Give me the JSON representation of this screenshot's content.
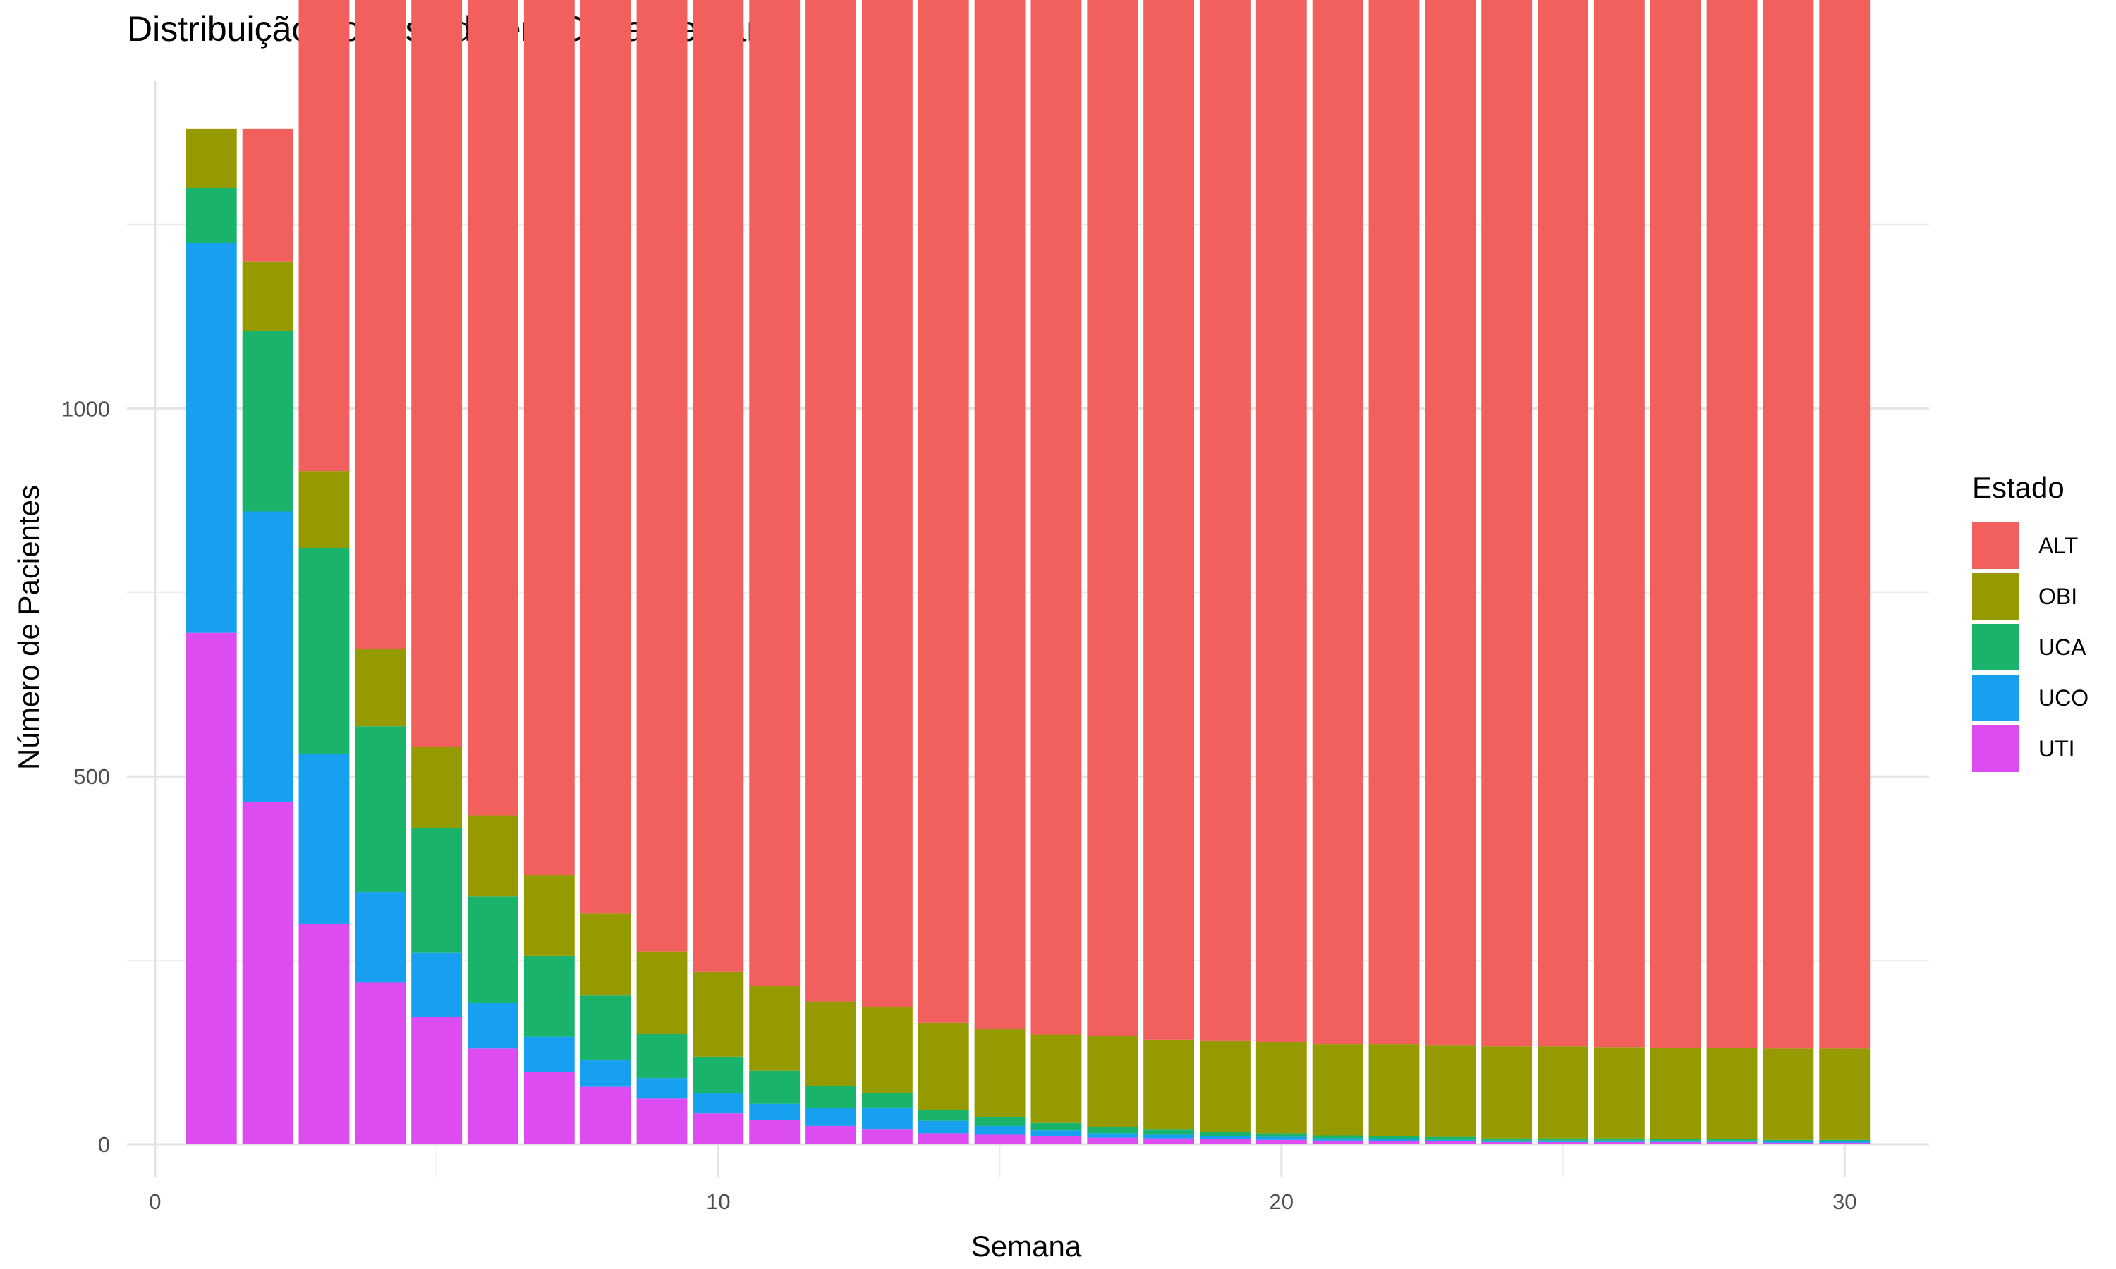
{
  "chart_data": {
    "type": "bar",
    "stacked": true,
    "title": "Distribuição por Estado em Cada Semana",
    "xlabel": "Semana",
    "ylabel": "Número de Pacientes",
    "xlim": [
      -0.5,
      31.5
    ],
    "ylim": [
      -45,
      1445
    ],
    "x_ticks": [
      0,
      10,
      20,
      30
    ],
    "y_ticks": [
      0,
      500,
      1000
    ],
    "grid": true,
    "legend": {
      "title": "Estado",
      "position": "right"
    },
    "x": [
      1,
      2,
      3,
      4,
      5,
      6,
      7,
      8,
      9,
      10,
      11,
      12,
      13,
      14,
      15,
      16,
      17,
      18,
      19,
      20,
      21,
      22,
      23,
      24,
      25,
      26,
      27,
      28,
      29,
      30
    ],
    "series": [
      {
        "name": "UTI",
        "color": "#DC4CF0",
        "values": [
          695,
          465,
          300,
          220,
          173,
          130,
          98,
          78,
          62,
          42,
          33,
          25,
          20,
          15,
          13,
          11,
          9,
          8,
          7,
          6,
          5,
          4,
          4,
          3,
          3,
          3,
          3,
          3,
          2,
          2
        ]
      },
      {
        "name": "UCO",
        "color": "#18A0F0",
        "values": [
          530,
          395,
          230,
          123,
          87,
          62,
          48,
          36,
          28,
          27,
          22,
          24,
          30,
          17,
          12,
          8,
          6,
          5,
          4,
          4,
          3,
          3,
          2,
          2,
          2,
          2,
          2,
          2,
          2,
          2
        ]
      },
      {
        "name": "UCA",
        "color": "#1AB36B",
        "values": [
          75,
          245,
          280,
          225,
          170,
          145,
          110,
          88,
          60,
          50,
          45,
          30,
          20,
          15,
          12,
          10,
          9,
          7,
          6,
          5,
          4,
          4,
          4,
          3,
          3,
          3,
          2,
          2,
          2,
          2
        ]
      },
      {
        "name": "OBI",
        "color": "#949A00",
        "values": [
          80,
          95,
          105,
          105,
          110,
          110,
          110,
          112,
          112,
          115,
          115,
          115,
          116,
          118,
          120,
          120,
          123,
          122,
          124,
          124,
          124,
          125,
          125,
          125,
          125,
          124,
          124,
          124,
          124,
          124
        ]
      },
      {
        "name": "ALT",
        "color": "#F2605D",
        "values": [
          0,
          180,
          763,
          1007,
          1100,
          1233,
          1314,
          1356,
          1418,
          1442,
          1465,
          1486,
          1494,
          1515,
          1523,
          1531,
          1533,
          1538,
          1539,
          1541,
          1544,
          1544,
          1545,
          1547,
          1547,
          1548,
          1549,
          1549,
          1550,
          1550
        ]
      }
    ]
  }
}
